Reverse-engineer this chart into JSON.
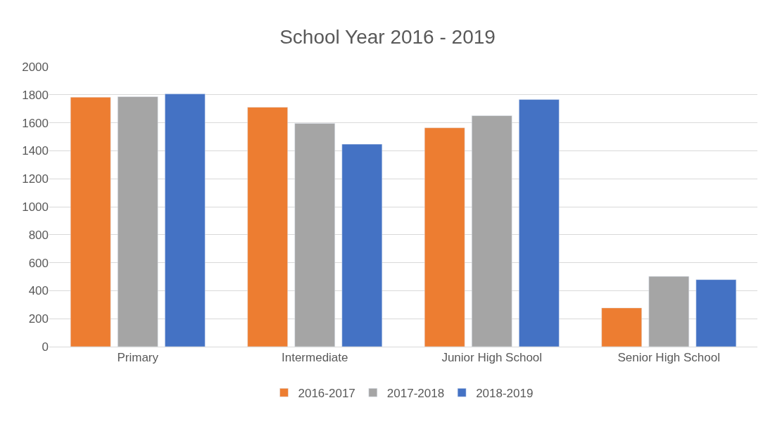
{
  "chart_data": {
    "type": "bar",
    "title": "School Year 2016 - 2019",
    "categories": [
      "Primary",
      "Intermediate",
      "Junior High School",
      "Senior High School"
    ],
    "series": [
      {
        "name": "2016-2017",
        "color": "#ed7d31",
        "values": [
          1783,
          1711,
          1564,
          277
        ]
      },
      {
        "name": "2017-2018",
        "color": "#a5a5a5",
        "values": [
          1787,
          1596,
          1651,
          502
        ]
      },
      {
        "name": "2018-2019",
        "color": "#4472c4",
        "values": [
          1806,
          1447,
          1766,
          479
        ]
      }
    ],
    "ylim": [
      0,
      2000
    ],
    "yticks": [
      0,
      200,
      400,
      600,
      800,
      1000,
      1200,
      1400,
      1600,
      1800,
      2000
    ],
    "grid": "y",
    "legend": "bottom"
  }
}
